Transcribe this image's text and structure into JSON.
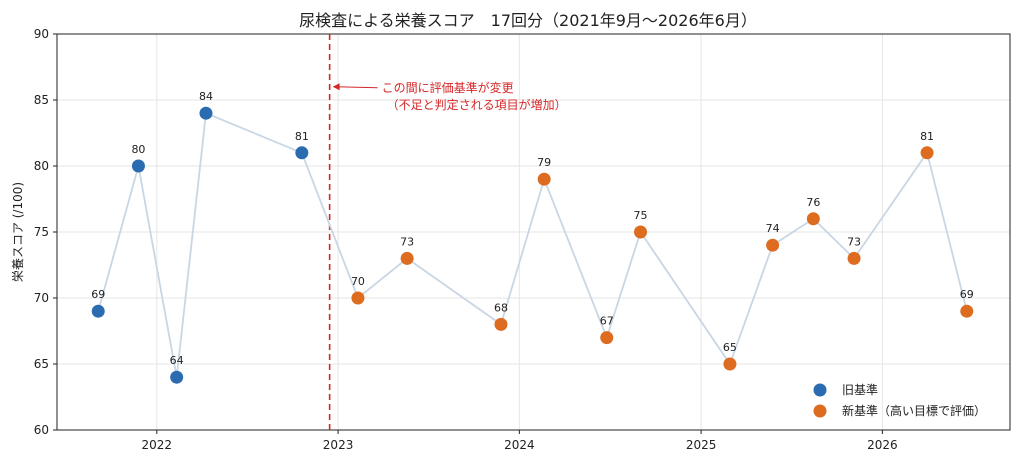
{
  "chart_data": {
    "type": "line",
    "title": "尿検査による栄養スコア　17回分（2021年9月～2026年6月）",
    "ylabel": "栄養スコア (/100)",
    "xlabel": "",
    "ylim": [
      60,
      90
    ],
    "yticks": [
      60,
      65,
      70,
      75,
      80,
      85,
      90
    ],
    "xlim": [
      "2021-06-14",
      "2026-09-15"
    ],
    "xticks": [
      {
        "label": "2022",
        "date": "2022-01-01"
      },
      {
        "label": "2023",
        "date": "2023-01-01"
      },
      {
        "label": "2024",
        "date": "2024-01-01"
      },
      {
        "label": "2025",
        "date": "2025-01-01"
      },
      {
        "label": "2026",
        "date": "2026-01-01"
      }
    ],
    "grid": true,
    "legend_position": "bottom-right",
    "colors": {
      "old": "#2b6cb0",
      "new": "#dd6b20",
      "line": "#c9d6e3",
      "annotation": "#d62728"
    },
    "series": [
      {
        "name": "旧基準",
        "key": "old",
        "points": [
          {
            "date": "2021-09-05",
            "value": 69
          },
          {
            "date": "2021-11-25",
            "value": 80
          },
          {
            "date": "2022-02-10",
            "value": 64
          },
          {
            "date": "2022-04-10",
            "value": 84
          },
          {
            "date": "2022-10-20",
            "value": 81
          }
        ]
      },
      {
        "name": "新基準（高い目標で評価）",
        "key": "new",
        "points": [
          {
            "date": "2023-02-10",
            "value": 70
          },
          {
            "date": "2023-05-20",
            "value": 73
          },
          {
            "date": "2023-11-25",
            "value": 68
          },
          {
            "date": "2024-02-20",
            "value": 79
          },
          {
            "date": "2024-06-25",
            "value": 67
          },
          {
            "date": "2024-09-01",
            "value": 75
          },
          {
            "date": "2025-02-28",
            "value": 65
          },
          {
            "date": "2025-05-25",
            "value": 74
          },
          {
            "date": "2025-08-15",
            "value": 76
          },
          {
            "date": "2025-11-05",
            "value": 73
          },
          {
            "date": "2026-04-01",
            "value": 81
          },
          {
            "date": "2026-06-20",
            "value": 69
          }
        ]
      }
    ],
    "annotation": {
      "date": "2022-12-15",
      "text_line1": "この間に評価基準が変更",
      "text_line2": "（不足と判定される項目が増加）"
    }
  }
}
